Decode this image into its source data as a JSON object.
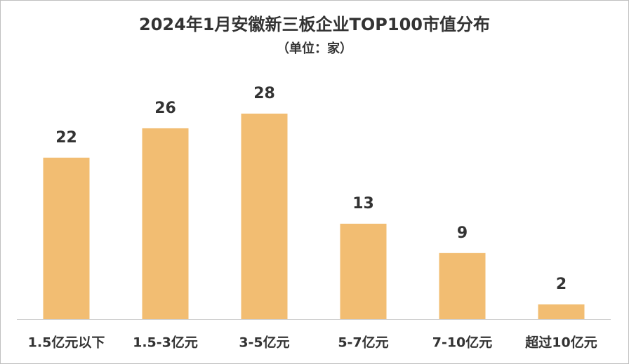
{
  "chart_data": {
    "type": "bar",
    "title": "2024年1月安徽新三板企业TOP100市值分布",
    "subtitle": "（单位：家）",
    "categories": [
      "1.5亿元以下",
      "1.5-3亿元",
      "3-5亿元",
      "5-7亿元",
      "7-10亿元",
      "超过10亿元"
    ],
    "values": [
      22,
      26,
      28,
      13,
      9,
      2
    ],
    "color": "#f2bd72"
  }
}
